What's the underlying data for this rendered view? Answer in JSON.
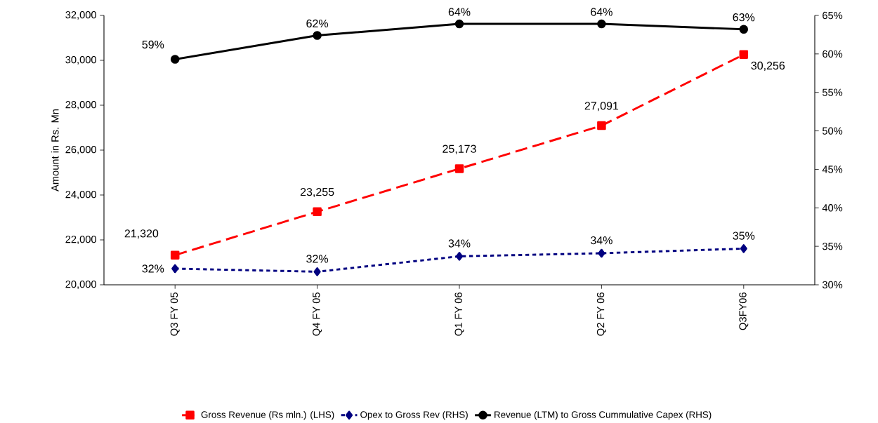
{
  "chart_data": {
    "type": "line",
    "ylabel": "Amount in Rs. Mn",
    "categories": [
      "Q3 FY 05",
      "Q4 FY 05",
      "Q1 FY 06",
      "Q2 FY 06",
      "Q3FY06"
    ],
    "series": [
      {
        "name": "Gross Revenue (Rs mln.) (LHS)",
        "color": "#ff0000",
        "marker": "square",
        "line_style": "dashed",
        "values": [
          21320,
          23255,
          25173,
          27091,
          30256
        ],
        "value_labels": [
          "21,320",
          "23,255",
          "25,173",
          "27,091",
          "30,256"
        ]
      },
      {
        "name": "Opex to Gross Rev (RHS)",
        "color": "#000080",
        "marker": "diamond",
        "line_style": "dotted",
        "axis": "y2",
        "values": [
          32.1,
          31.7,
          33.7,
          34.1,
          34.7
        ],
        "value_labels": [
          "32%",
          "32%",
          "34%",
          "34%",
          "35%"
        ]
      },
      {
        "name": "Revenue (LTM) to Gross Cummulative Capex (RHS)",
        "color": "#000000",
        "marker": "circle",
        "line_style": "solid",
        "axis": "y2",
        "values": [
          59.3,
          62.4,
          63.9,
          63.9,
          63.2
        ],
        "value_labels": [
          "59%",
          "62%",
          "64%",
          "64%",
          "63%"
        ]
      }
    ],
    "ylim": [
      20000,
      32000
    ],
    "yticks": [
      {
        "value": 20000,
        "label": "20,000"
      },
      {
        "value": 22000,
        "label": "22,000"
      },
      {
        "value": 24000,
        "label": "24,000"
      },
      {
        "value": 26000,
        "label": "26,000"
      },
      {
        "value": 28000,
        "label": "28,000"
      },
      {
        "value": 30000,
        "label": "30,000"
      },
      {
        "value": 32000,
        "label": "32,000"
      }
    ],
    "y2lim": [
      30,
      65
    ],
    "y2ticks": [
      {
        "value": 30,
        "label": "30%"
      },
      {
        "value": 35,
        "label": "35%"
      },
      {
        "value": 40,
        "label": "40%"
      },
      {
        "value": 45,
        "label": "45%"
      },
      {
        "value": 50,
        "label": "50%"
      },
      {
        "value": 55,
        "label": "55%"
      },
      {
        "value": 60,
        "label": "60%"
      },
      {
        "value": 65,
        "label": "65%"
      }
    ],
    "grid": false,
    "legend": "bottom"
  }
}
